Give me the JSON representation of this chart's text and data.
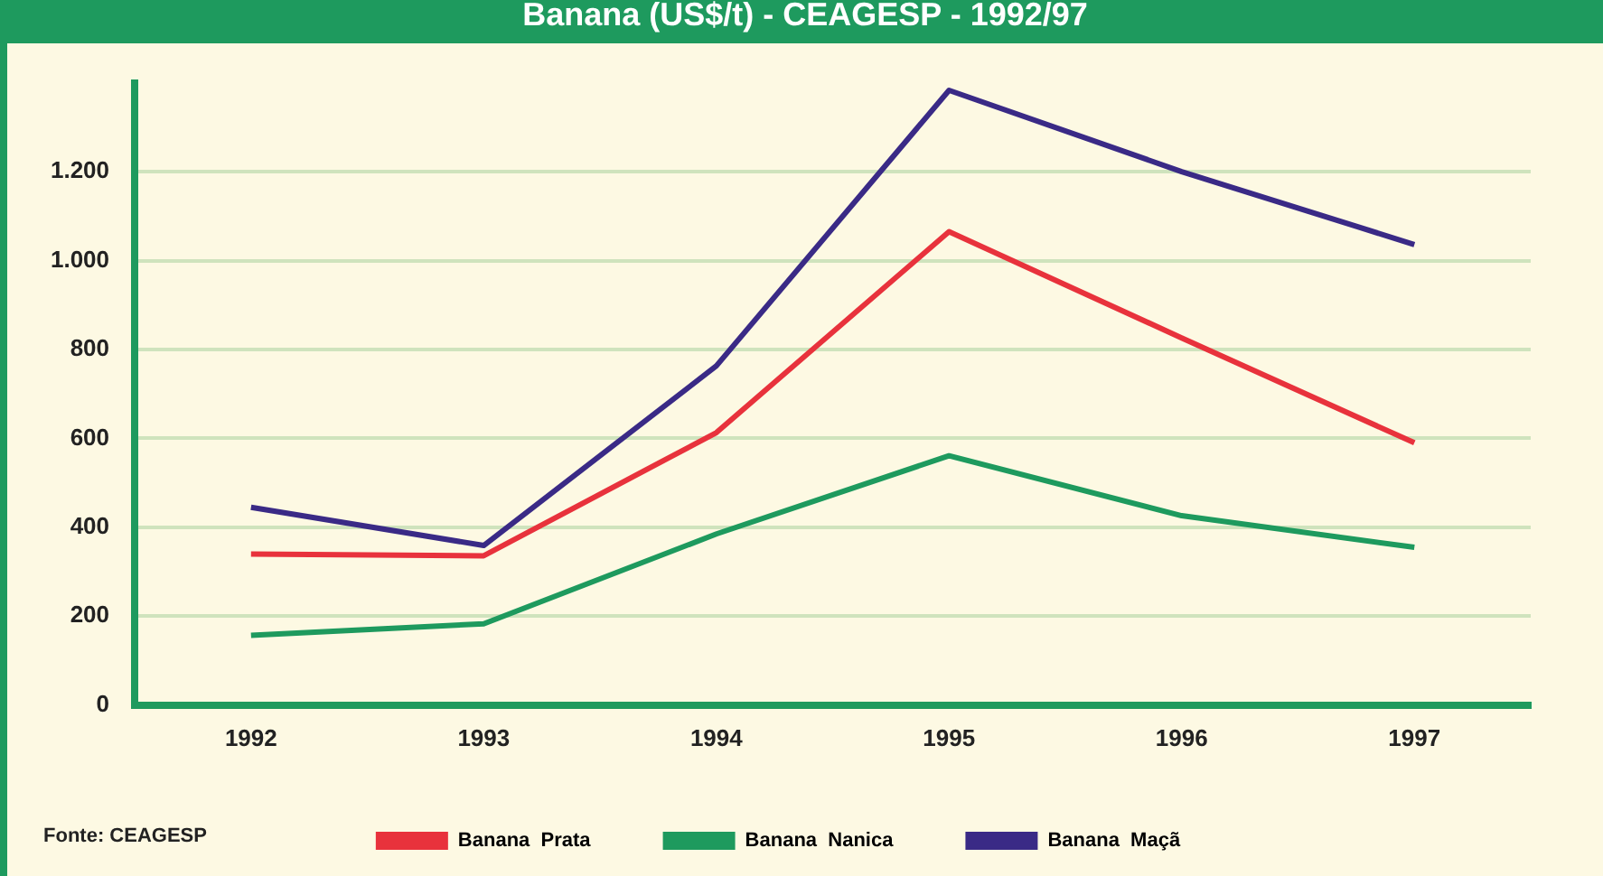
{
  "chart_data": {
    "type": "line",
    "title": "Banana (US$/t) - CEAGESP - 1992/97",
    "categories": [
      "1992",
      "1993",
      "1994",
      "1995",
      "1996",
      "1997"
    ],
    "series": [
      {
        "name": "Banana  Prata",
        "color": "#e8323c",
        "values": [
          340,
          336,
          613,
          1065,
          826,
          590
        ]
      },
      {
        "name": "Banana  Nanica",
        "color": "#1e9a5e",
        "values": [
          157,
          183,
          385,
          561,
          426,
          355
        ]
      },
      {
        "name": "Banana  Maçã",
        "color": "#3a2a86",
        "values": [
          445,
          359,
          763,
          1383,
          1200,
          1036
        ]
      }
    ],
    "ylim": [
      0,
      1400
    ],
    "yticks": [
      0,
      200,
      400,
      600,
      800,
      {
        "value": 1000,
        "label": "1.000"
      },
      {
        "value": 1200,
        "label": "1.200"
      }
    ],
    "grid": "y",
    "legend": "bottom",
    "marker": "none",
    "line_style": "solid",
    "annotations": [
      "Fonte: CEAGESP"
    ]
  }
}
